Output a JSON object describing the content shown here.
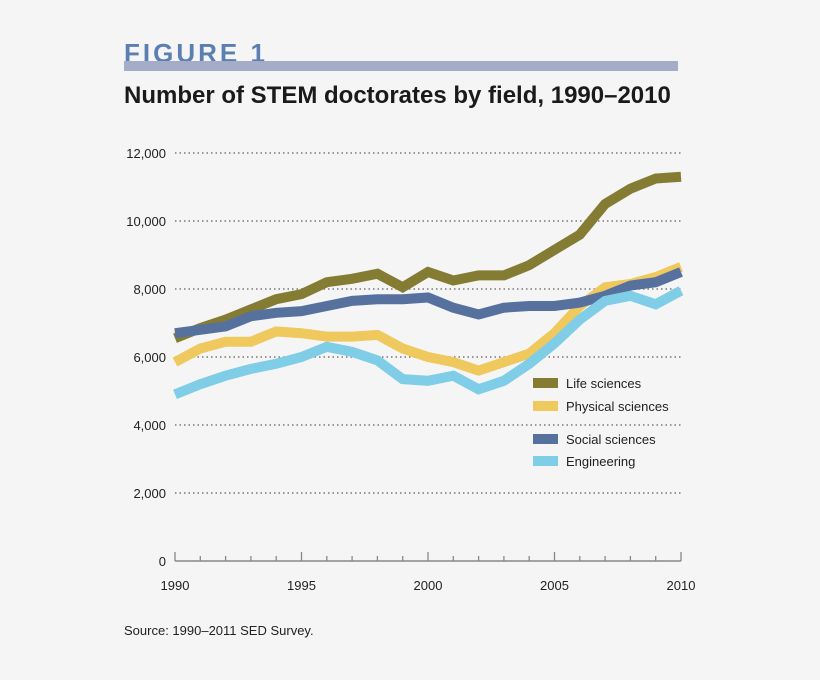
{
  "figure_label": "FIGURE 1",
  "source": "Source: 1990–2011 SED Survey.",
  "chart_data": {
    "type": "line",
    "title": "Number of STEM doctorates by field, 1990–2010",
    "xlabel": "",
    "ylabel": "",
    "xlim": [
      1990,
      2010
    ],
    "ylim": [
      0,
      12000
    ],
    "x_ticks": [
      1990,
      1995,
      2000,
      2005,
      2010
    ],
    "y_ticks": [
      0,
      2000,
      4000,
      6000,
      8000,
      10000,
      12000
    ],
    "y_tick_labels": [
      "0",
      "2,000",
      "4,000",
      "6,000",
      "8,000",
      "10,000",
      "12,000"
    ],
    "grid": "horizontal dotted",
    "legend_position": "right",
    "x": [
      1990,
      1991,
      1992,
      1993,
      1994,
      1995,
      1996,
      1997,
      1998,
      1999,
      2000,
      2001,
      2002,
      2003,
      2004,
      2005,
      2006,
      2007,
      2008,
      2009,
      2010
    ],
    "series": [
      {
        "name": "Life sciences",
        "color": "#857c34",
        "values": [
          6550,
          6850,
          7100,
          7400,
          7700,
          7850,
          8200,
          8300,
          8450,
          8050,
          8500,
          8250,
          8400,
          8400,
          8700,
          9150,
          9600,
          10500,
          10950,
          11250,
          11300
        ]
      },
      {
        "name": "Physical sciences",
        "color": "#efc95e",
        "values": [
          5850,
          6250,
          6450,
          6450,
          6750,
          6700,
          6600,
          6600,
          6650,
          6250,
          6000,
          5850,
          5600,
          5850,
          6100,
          6700,
          7500,
          8050,
          8150,
          8350,
          8650
        ]
      },
      {
        "name": "Social sciences",
        "color": "#56719e",
        "values": [
          6700,
          6800,
          6900,
          7200,
          7300,
          7350,
          7500,
          7650,
          7700,
          7700,
          7750,
          7450,
          7250,
          7450,
          7500,
          7500,
          7600,
          7800,
          8100,
          8200,
          8500
        ]
      },
      {
        "name": "Engineering",
        "color": "#7fcde6",
        "values": [
          4900,
          5200,
          5450,
          5650,
          5800,
          6000,
          6300,
          6150,
          5900,
          5350,
          5300,
          5450,
          5050,
          5300,
          5800,
          6400,
          7100,
          7650,
          7800,
          7550,
          7950
        ]
      }
    ]
  }
}
